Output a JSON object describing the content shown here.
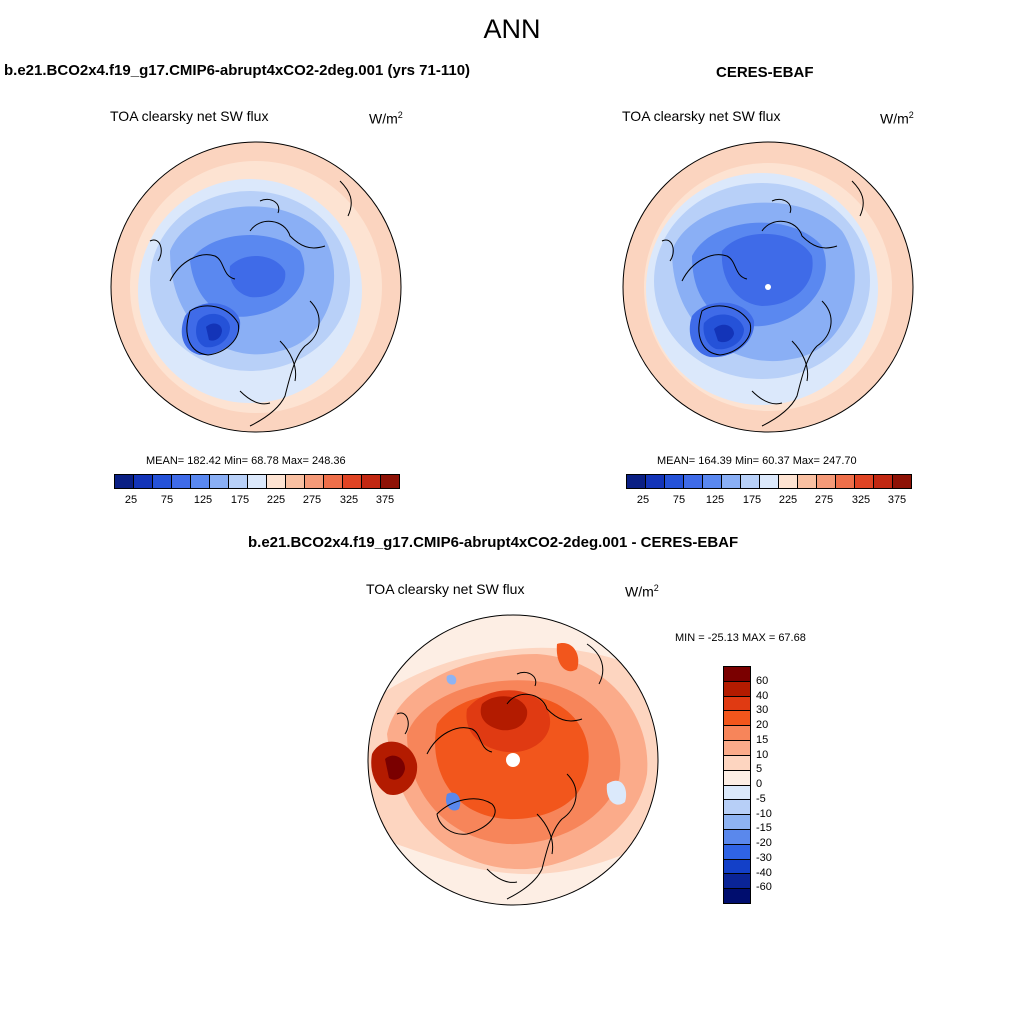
{
  "title": "ANN",
  "panels": [
    {
      "title": "b.e21.BCO2x4.f19_g17.CMIP6-abrupt4xCO2-2deg.001 (yrs 71-110)",
      "variable": "TOA clearsky net SW flux",
      "units": "W/m",
      "units_sup": "2",
      "stats": "MEAN= 182.42  Min=  68.78  Max= 248.36",
      "colorbar_labels": [
        "25",
        "75",
        "125",
        "175",
        "225",
        "275",
        "325",
        "375"
      ]
    },
    {
      "title": "CERES-EBAF",
      "variable": "TOA clearsky net SW flux",
      "units": "W/m",
      "units_sup": "2",
      "stats": "MEAN= 164.39  Min=  60.37  Max= 247.70",
      "colorbar_labels": [
        "25",
        "75",
        "125",
        "175",
        "225",
        "275",
        "325",
        "375"
      ]
    },
    {
      "title": "b.e21.BCO2x4.f19_g17.CMIP6-abrupt4xCO2-2deg.001 - CERES-EBAF",
      "variable": "TOA clearsky net SW flux",
      "units": "W/m",
      "units_sup": "2",
      "stats": "MIN = -25.13 MAX =  67.68",
      "colorbar_labels": [
        "60",
        "40",
        "30",
        "20",
        "15",
        "10",
        "5",
        "0",
        "-5",
        "-10",
        "-15",
        "-20",
        "-30",
        "-40",
        "-60"
      ]
    }
  ],
  "colors": {
    "abs_scale": [
      "#0a1f84",
      "#1334b8",
      "#2552d8",
      "#3f6be8",
      "#5a88f0",
      "#8aaff5",
      "#b8d0f8",
      "#dbe8fb",
      "#fde3d2",
      "#f9c0a2",
      "#f59a78",
      "#ef6f4a",
      "#e04424",
      "#c22812",
      "#8e1206"
    ],
    "diff_scale": [
      "#7a0000",
      "#b31b00",
      "#e03a12",
      "#f2561c",
      "#f7855a",
      "#fbab8a",
      "#fdd5c0",
      "#fdeee4",
      "#dbe9fb",
      "#b7cff7",
      "#8eb3f2",
      "#5a88ec",
      "#2f63e4",
      "#1340c8",
      "#0a2496",
      "#000d6e"
    ]
  }
}
